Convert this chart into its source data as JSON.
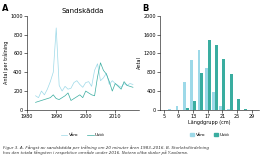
{
  "title_A": "Sandskädda",
  "label_A": "A",
  "label_B": "B",
  "ylabel_A": "Antal per trålning",
  "ylabel_B": "Antal",
  "xlabel_B": "Längdgrupp (cm)",
  "legend_varo": "Våro",
  "legend_usto": "Ustö",
  "caption": "Figur 3. A. Fångst av sandskädda per trålning om 20 minuter åren 1983–2016. B. Storleksfördelning\nhos den totala fångsten i respektive område under 2016. Notera olika skalor på Y-axlarna.",
  "color_varo": "#9dd9e8",
  "color_usto": "#3aada0",
  "years": [
    1983,
    1984,
    1985,
    1986,
    1987,
    1988,
    1989,
    1990,
    1991,
    1992,
    1993,
    1994,
    1995,
    1996,
    1997,
    1998,
    1999,
    2000,
    2001,
    2002,
    2003,
    2004,
    2005,
    2006,
    2007,
    2008,
    2009,
    2010,
    2011,
    2012,
    2013,
    2014,
    2015,
    2016
  ],
  "varo_ts": [
    150,
    130,
    200,
    160,
    220,
    300,
    400,
    870,
    260,
    200,
    250,
    220,
    230,
    290,
    310,
    270,
    240,
    290,
    300,
    250,
    420,
    490,
    310,
    340,
    390,
    270,
    310,
    280,
    260,
    240,
    280,
    260,
    280,
    270
  ],
  "usto_ts": [
    80,
    90,
    100,
    110,
    120,
    130,
    160,
    120,
    110,
    130,
    150,
    180,
    100,
    120,
    140,
    160,
    130,
    200,
    180,
    160,
    150,
    350,
    500,
    420,
    380,
    300,
    200,
    280,
    250,
    220,
    300,
    260,
    250,
    240
  ],
  "length_bins": [
    5,
    7,
    9,
    11,
    13,
    15,
    17,
    19,
    21,
    23,
    25,
    27,
    29
  ],
  "varo_bar": [
    0,
    10,
    80,
    600,
    1050,
    1280,
    880,
    380,
    90,
    20,
    3,
    0,
    0
  ],
  "usto_bar": [
    0,
    0,
    0,
    30,
    180,
    780,
    1480,
    1380,
    1080,
    760,
    230,
    25,
    3
  ],
  "ylim_A": [
    0,
    1000
  ],
  "ylim_B": [
    0,
    2000
  ],
  "yticks_A": [
    0,
    200,
    400,
    600,
    800,
    1000
  ],
  "yticks_B": [
    0,
    400,
    800,
    1200,
    1600,
    2000
  ],
  "xticks_B": [
    5,
    9,
    13,
    17,
    21,
    25,
    29
  ]
}
